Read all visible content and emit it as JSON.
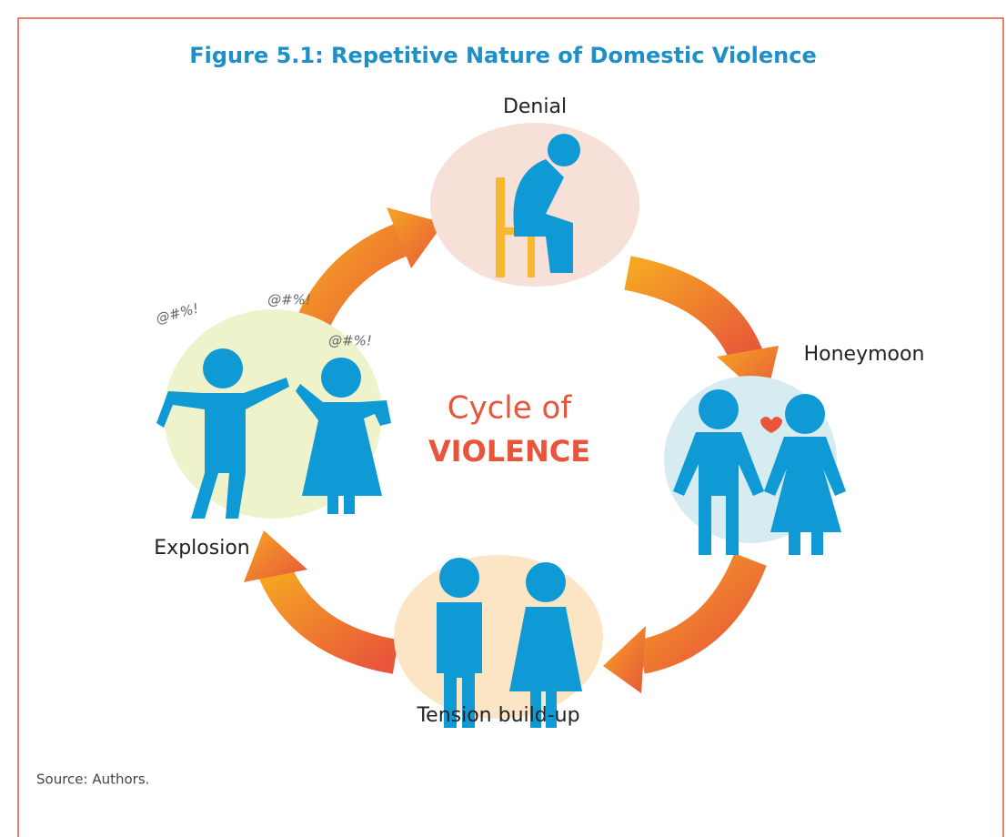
{
  "title": "Figure 5.1: Repetitive Nature of Domestic Violence",
  "center": {
    "line1": "Cycle of",
    "line2": "VIOLENCE"
  },
  "stages": {
    "denial": "Denial",
    "honeymoon": "Honeymoon",
    "tension": "Tension build-up",
    "explosion": "Explosion"
  },
  "exclamations": [
    "@#%!",
    "@#%!",
    "@#%!"
  ],
  "source": "Source: Authors."
}
